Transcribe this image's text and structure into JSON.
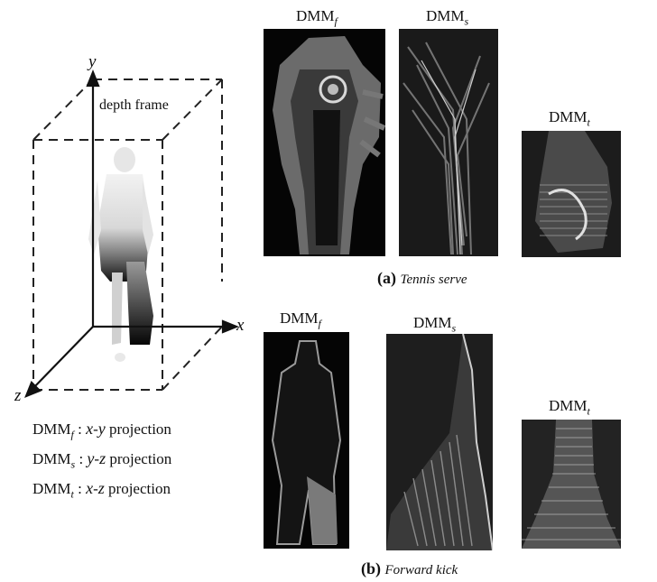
{
  "diagram": {
    "axes": {
      "x": "x",
      "y": "y",
      "z": "z"
    },
    "depth_frame_label": "depth frame"
  },
  "legend": [
    {
      "map": "DMM",
      "sub": "f",
      "sep": " : ",
      "a": "x",
      "dash": "-",
      "b": "y",
      "word": " projection"
    },
    {
      "map": "DMM",
      "sub": "s",
      "sep": " : ",
      "a": "y",
      "dash": "-",
      "b": "z",
      "word": " projection"
    },
    {
      "map": "DMM",
      "sub": "t",
      "sep": " : ",
      "a": "x",
      "dash": "-",
      "b": "z",
      "word": " projection"
    }
  ],
  "row_a": {
    "caption_tag": "(a)",
    "caption_name": "Tennis serve",
    "labels": [
      {
        "map": "DMM",
        "sub": "f"
      },
      {
        "map": "DMM",
        "sub": "s"
      },
      {
        "map": "DMM",
        "sub": "t"
      }
    ]
  },
  "row_b": {
    "caption_tag": "(b)",
    "caption_name": "Forward kick",
    "labels": [
      {
        "map": "DMM",
        "sub": "f"
      },
      {
        "map": "DMM",
        "sub": "s"
      },
      {
        "map": "DMM",
        "sub": "t"
      }
    ]
  }
}
